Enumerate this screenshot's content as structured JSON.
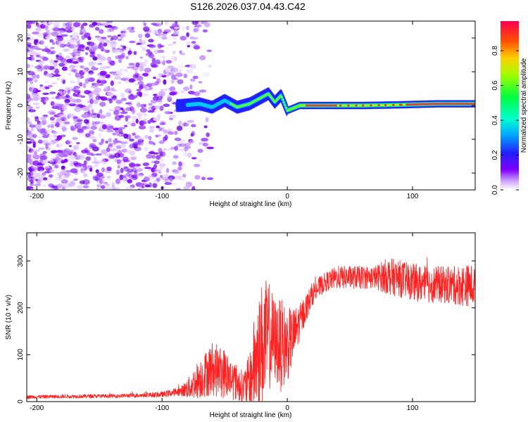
{
  "title": "S126.2026.037.04.43.C42",
  "chart_data": [
    {
      "type": "heatmap",
      "xlabel": "Height of straight line (km)",
      "ylabel": "Frequency (Hz)",
      "xlim": [
        -208,
        150
      ],
      "ylim": [
        -25,
        25
      ],
      "xticks": [
        -200,
        -100,
        0,
        100
      ],
      "xtick_labels": [
        "-200",
        "-100",
        "0",
        "100"
      ],
      "yticks": [
        -20,
        -10,
        0,
        10,
        20
      ],
      "ytick_labels": [
        "-20",
        "-10",
        "0",
        "10",
        "20"
      ],
      "colorbar": {
        "label": "Normalized spectral amplitude",
        "range": [
          0.0,
          0.97
        ],
        "ticks": [
          0.0,
          0.2,
          0.4,
          0.6,
          0.8
        ],
        "tick_labels": [
          "0.0",
          "0.2",
          "0.4",
          "0.6",
          "0.8"
        ]
      },
      "ridge": {
        "description": "narrow high-amplitude ridge near 0 Hz",
        "x": [
          -85,
          -70,
          -60,
          -50,
          -40,
          -30,
          -20,
          -15,
          -10,
          -5,
          0,
          10,
          30,
          60,
          90,
          120,
          150
        ],
        "y": [
          0,
          0.5,
          -0.5,
          1.5,
          -0.5,
          0.5,
          2.5,
          3.5,
          1.0,
          3.0,
          -1.5,
          0,
          0,
          0,
          0.2,
          0.5,
          0.5
        ]
      },
      "noise_region": {
        "x_range": [
          -208,
          -80
        ],
        "y_range": [
          -25,
          25
        ]
      }
    },
    {
      "type": "line",
      "color": "#ff2020",
      "xlabel": "Height of straight line (km)",
      "ylabel": "SNR (10 * v/v)",
      "xlim": [
        -208,
        150
      ],
      "ylim": [
        0,
        360
      ],
      "xticks": [
        -200,
        -100,
        0,
        100
      ],
      "xtick_labels": [
        "-200",
        "-100",
        "0",
        "100"
      ],
      "yticks": [
        0,
        100,
        200,
        300
      ],
      "ytick_labels": [
        "0",
        "100",
        "200",
        "300"
      ],
      "x": [
        -208,
        -180,
        -140,
        -100,
        -85,
        -78,
        -72,
        -65,
        -60,
        -55,
        -50,
        -45,
        -40,
        -35,
        -30,
        -25,
        -20,
        -15,
        -10,
        -5,
        0,
        5,
        10,
        15,
        20,
        30,
        40,
        50,
        60,
        70,
        80,
        90,
        100,
        110,
        120,
        130,
        140,
        150
      ],
      "y": [
        10,
        11,
        12,
        15,
        22,
        30,
        45,
        60,
        70,
        65,
        60,
        50,
        40,
        30,
        45,
        90,
        120,
        140,
        130,
        120,
        120,
        140,
        170,
        200,
        230,
        255,
        265,
        265,
        265,
        265,
        268,
        262,
        255,
        250,
        250,
        248,
        248,
        248
      ],
      "noise_amplitude": [
        4,
        4,
        4,
        6,
        10,
        25,
        40,
        50,
        60,
        55,
        55,
        45,
        40,
        35,
        60,
        120,
        140,
        120,
        90,
        100,
        80,
        60,
        40,
        30,
        25,
        20,
        25,
        25,
        25,
        25,
        40,
        40,
        40,
        40,
        40,
        40,
        45,
        45
      ]
    }
  ]
}
